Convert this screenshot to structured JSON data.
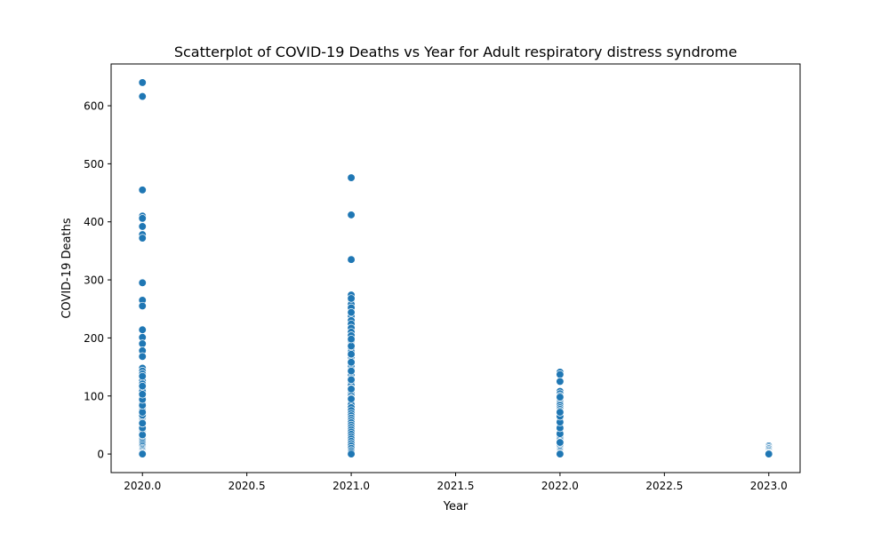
{
  "chart_data": {
    "type": "scatter",
    "title": "Scatterplot of COVID-19 Deaths vs Year for Adult respiratory distress syndrome",
    "xlabel": "Year",
    "ylabel": "COVID-19 Deaths",
    "xlim": [
      2019.85,
      2023.15
    ],
    "ylim": [
      -32,
      672
    ],
    "xticks": [
      2020.0,
      2020.5,
      2021.0,
      2021.5,
      2022.0,
      2022.5,
      2023.0
    ],
    "xtick_labels": [
      "2020.0",
      "2020.5",
      "2021.0",
      "2021.5",
      "2022.0",
      "2022.5",
      "2023.0"
    ],
    "yticks": [
      0,
      100,
      200,
      300,
      400,
      500,
      600
    ],
    "ytick_labels": [
      "0",
      "100",
      "200",
      "300",
      "400",
      "500",
      "600"
    ],
    "grid": false,
    "legend": "none",
    "marker_color": "#1f77b4",
    "series": [
      {
        "x": [
          2020,
          2020,
          2020,
          2020,
          2020,
          2020,
          2020,
          2020,
          2020,
          2020,
          2020,
          2020,
          2020,
          2020,
          2020,
          2020,
          2020,
          2020,
          2020,
          2020,
          2020,
          2020,
          2020,
          2020,
          2020,
          2020,
          2020,
          2020,
          2020,
          2020,
          2020,
          2020,
          2020,
          2020,
          2020,
          2020,
          2020,
          2020,
          2020,
          2020,
          2020,
          2020,
          2020,
          2020,
          2020,
          2020,
          2020,
          2020,
          2020,
          2020,
          2020,
          2020,
          2020,
          2020,
          2020,
          2020,
          2020,
          2020,
          2020,
          2020,
          2020,
          2020,
          2020,
          2020
        ],
        "y": [
          640,
          616,
          455,
          410,
          406,
          392,
          378,
          372,
          295,
          265,
          255,
          214,
          201,
          190,
          178,
          168,
          148,
          143,
          138,
          131,
          126,
          121,
          112,
          108,
          100,
          97,
          91,
          87,
          80,
          75,
          70,
          65,
          62,
          58,
          55,
          51,
          47,
          43,
          39,
          35,
          31,
          28,
          25,
          22,
          19,
          16,
          13,
          10,
          8,
          6,
          4,
          2,
          1,
          0,
          33,
          45,
          53,
          67,
          72,
          84,
          94,
          103,
          117,
          134
        ]
      },
      {
        "x": [
          2021,
          2021,
          2021,
          2021,
          2021,
          2021,
          2021,
          2021,
          2021,
          2021,
          2021,
          2021,
          2021,
          2021,
          2021,
          2021,
          2021,
          2021,
          2021,
          2021,
          2021,
          2021,
          2021,
          2021,
          2021,
          2021,
          2021,
          2021,
          2021,
          2021,
          2021,
          2021,
          2021,
          2021,
          2021,
          2021,
          2021,
          2021,
          2021,
          2021,
          2021,
          2021,
          2021,
          2021,
          2021,
          2021,
          2021,
          2021,
          2021,
          2021,
          2021,
          2021,
          2021,
          2021,
          2021,
          2021,
          2021,
          2021,
          2021,
          2021,
          2021,
          2021,
          2021,
          2021,
          2021,
          2021,
          2021,
          2021
        ],
        "y": [
          476,
          412,
          335,
          274,
          265,
          258,
          252,
          238,
          230,
          224,
          217,
          210,
          204,
          193,
          188,
          181,
          176,
          169,
          164,
          160,
          155,
          150,
          145,
          140,
          135,
          130,
          126,
          122,
          118,
          113,
          108,
          104,
          100,
          96,
          92,
          88,
          85,
          80,
          75,
          70,
          66,
          62,
          58,
          54,
          50,
          46,
          42,
          38,
          34,
          30,
          26,
          22,
          18,
          14,
          10,
          6,
          3,
          0,
          95,
          112,
          128,
          143,
          158,
          172,
          186,
          198,
          244,
          268
        ]
      },
      {
        "x": [
          2022,
          2022,
          2022,
          2022,
          2022,
          2022,
          2022,
          2022,
          2022,
          2022,
          2022,
          2022,
          2022,
          2022,
          2022,
          2022,
          2022,
          2022,
          2022,
          2022,
          2022,
          2022,
          2022,
          2022,
          2022,
          2022,
          2022,
          2022,
          2022,
          2022,
          2022,
          2022,
          2022,
          2022,
          2022,
          2022,
          2022,
          2022,
          2022,
          2022,
          2022,
          2022,
          2022,
          2022,
          2022,
          2022
        ],
        "y": [
          141,
          137,
          125,
          108,
          104,
          100,
          96,
          93,
          90,
          87,
          84,
          80,
          77,
          74,
          70,
          67,
          63,
          60,
          57,
          53,
          50,
          47,
          43,
          40,
          37,
          33,
          30,
          27,
          24,
          21,
          18,
          15,
          12,
          9,
          7,
          5,
          3,
          1,
          0,
          20,
          35,
          45,
          55,
          65,
          72,
          98
        ]
      },
      {
        "x": [
          2023,
          2023,
          2023,
          2023,
          2023,
          2023,
          2023,
          2023,
          2023,
          2023
        ],
        "y": [
          14,
          12,
          10,
          9,
          7,
          5,
          3,
          2,
          1,
          0
        ]
      }
    ]
  }
}
